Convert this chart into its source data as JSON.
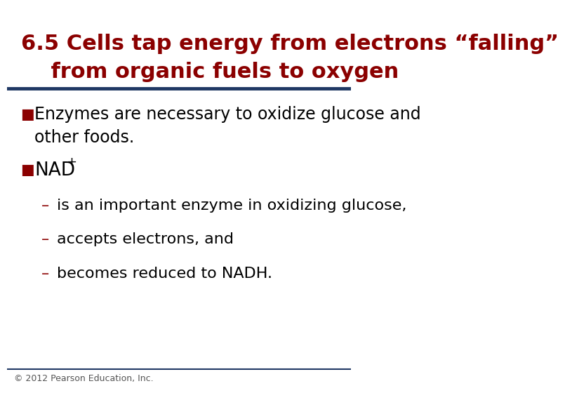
{
  "title_line1": "6.5 Cells tap energy from electrons “falling”",
  "title_line2": "    from organic fuels to oxygen",
  "title_color": "#8B0000",
  "title_fontsize": 22,
  "title_bold": true,
  "separator_color": "#1F3864",
  "separator_thickness": 3.5,
  "background_color": "#FFFFFF",
  "bullet_color": "#8B0000",
  "bullet_char": "■",
  "bullet1_text_line1": "Enzymes are necessary to oxidize glucose and",
  "bullet1_text_line2": "other foods.",
  "bullet2_text": "NAD",
  "bullet2_superscript": "+",
  "sub1_text": "is an important enzyme in oxidizing glucose,",
  "sub2_text": "accepts electrons, and",
  "sub3_text": "becomes reduced to NADH.",
  "sub_dash": "–",
  "body_fontsize": 17,
  "sub_fontsize": 16,
  "body_color": "#000000",
  "footer_text": "© 2012 Pearson Education, Inc.",
  "footer_fontsize": 9,
  "footer_color": "#555555",
  "footer_line_color": "#1F3864"
}
